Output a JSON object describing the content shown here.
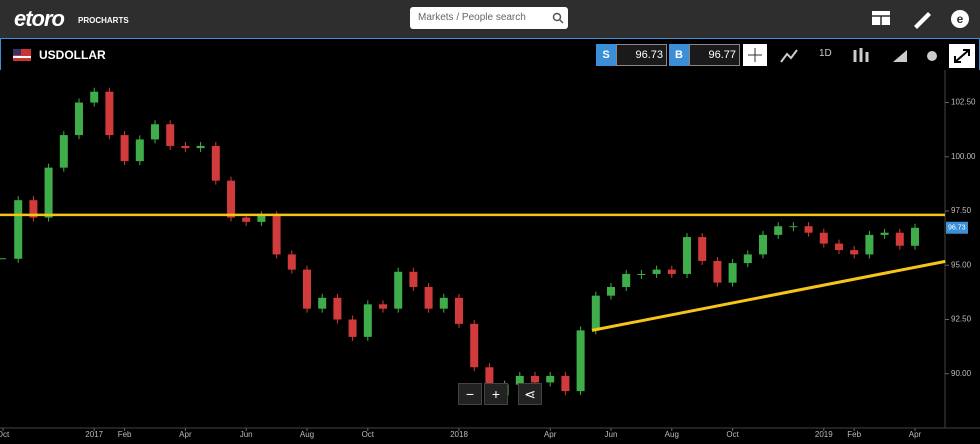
{
  "header": {
    "logo": "etoro",
    "subtitle": "PROCHARTS",
    "search_placeholder": "Markets / People search"
  },
  "toolbar": {
    "symbol": "USDOLLAR",
    "sell_label": "S",
    "sell": "96.73",
    "buy_label": "B",
    "buy": "96.77",
    "interval": "1D"
  },
  "chart_data": {
    "type": "candlestick",
    "values": [
      95.3,
      98.0,
      97.2,
      99.5,
      101.0,
      102.5,
      103.0,
      101.0,
      99.8,
      100.8,
      101.5,
      100.5,
      100.4,
      100.5,
      98.9,
      97.2,
      97.0,
      97.3,
      95.5,
      94.8,
      93.0,
      93.5,
      92.5,
      91.7,
      93.2,
      93.0,
      94.7,
      94.0,
      93.0,
      93.5,
      92.3,
      90.3,
      89.0,
      89.5,
      89.9,
      89.6,
      89.9,
      89.2,
      92.0,
      93.6,
      94.0,
      94.6,
      94.6,
      94.8,
      94.6,
      96.3,
      95.2,
      94.2,
      95.1,
      95.5,
      96.4,
      96.8,
      96.8,
      96.5,
      96.0,
      95.7,
      95.5,
      96.4,
      96.5,
      95.9,
      96.73
    ],
    "up_color": "#3fae4a",
    "down_color": "#d23b3b",
    "ylim": [
      87.5,
      104
    ],
    "yticks": [
      {
        "value": 90,
        "label": "90.00"
      },
      {
        "value": 92.5,
        "label": "92.50"
      },
      {
        "value": 95,
        "label": "95.00"
      },
      {
        "value": 97.5,
        "label": "97.50"
      },
      {
        "value": 100,
        "label": "100.00"
      },
      {
        "value": 102.5,
        "label": "102.50"
      }
    ],
    "xticks": [
      {
        "value": 0,
        "label": "Oct"
      },
      {
        "value": 6,
        "label": "2017"
      },
      {
        "value": 8,
        "label": "Feb"
      },
      {
        "value": 12,
        "label": "Apr"
      },
      {
        "value": 16,
        "label": "Jun"
      },
      {
        "value": 20,
        "label": "Aug"
      },
      {
        "value": 24,
        "label": "Oct"
      },
      {
        "value": 30,
        "label": "2018"
      },
      {
        "value": 36,
        "label": "Apr"
      },
      {
        "value": 40,
        "label": "Jun"
      },
      {
        "value": 44,
        "label": "Aug"
      },
      {
        "value": 48,
        "label": "Oct"
      },
      {
        "value": 54,
        "label": "2019"
      },
      {
        "value": 56,
        "label": "Feb"
      },
      {
        "value": 60,
        "label": "Apr"
      }
    ],
    "hline": {
      "value": 97.32,
      "color": "#f5c518"
    },
    "trendline": {
      "x": [
        38.75,
        62
      ],
      "y": [
        92.0,
        95.18
      ],
      "color": "#f5c518"
    }
  }
}
